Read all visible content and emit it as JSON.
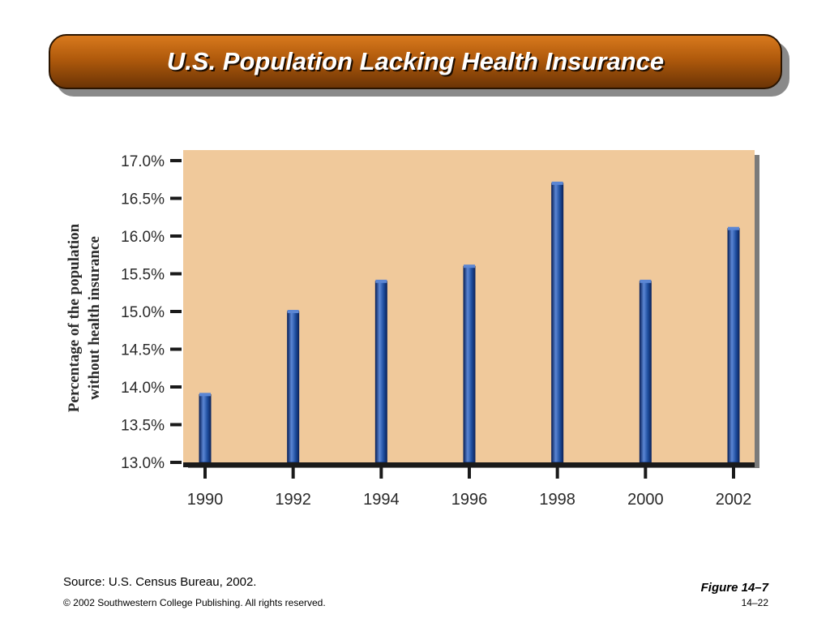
{
  "slide": {
    "title": "U.S. Population Lacking Health Insurance",
    "source": "Source: U.S. Census Bureau, 2002.",
    "figure_label": "Figure 14–7",
    "copyright": "© 2002 Southwestern College Publishing. All rights reserved.",
    "page_number": "14–22"
  },
  "chart_data": {
    "type": "bar",
    "title": "",
    "xlabel": "",
    "ylabel": [
      "Percentage of the population",
      "without health insurance"
    ],
    "categories": [
      "1990",
      "1992",
      "1994",
      "1996",
      "1998",
      "2000",
      "2002"
    ],
    "values": [
      13.9,
      15.0,
      15.4,
      15.6,
      16.7,
      15.4,
      16.1
    ],
    "ylim": [
      13.0,
      17.0
    ],
    "yticks": [
      "13.0%",
      "13.5%",
      "14.0%",
      "14.5%",
      "15.0%",
      "15.5%",
      "16.0%",
      "16.5%",
      "17.0%"
    ],
    "grid": false,
    "colors": {
      "bar": "#1f4fa0",
      "bar_dark": "#0d2660",
      "bar_light": "#5b86d4",
      "plot_bg": "#f0c99b",
      "axis": "#1a1a1a"
    }
  }
}
